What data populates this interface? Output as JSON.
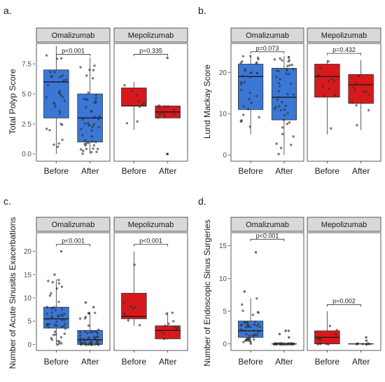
{
  "colors": {
    "Before_Omalizumab": "#3a77d6",
    "After_Omalizumab": "#3a77d6",
    "mepolizumab": "#d7191c",
    "strip": "#d9d9d9",
    "point": "#333333"
  },
  "chart_data": [
    {
      "type": "boxplot",
      "panel_label": "a.",
      "ylabel": "Total Polyp Score",
      "ylim": [
        -0.6,
        9.2
      ],
      "yticks": [
        0.0,
        2.5,
        5.0,
        7.5
      ],
      "ytick_labels": [
        "0.0",
        "2.5",
        "5.0",
        "7.5"
      ],
      "facets": [
        "Omalizumab",
        "Mepolizumab"
      ],
      "categories": [
        "Before",
        "After"
      ],
      "boxes": {
        "Omalizumab": {
          "Before": {
            "min": 0,
            "q1": 3,
            "median": 6,
            "q3": 7,
            "max": 9
          },
          "After": {
            "min": 0,
            "q1": 1,
            "median": 3,
            "q3": 5,
            "max": 8
          }
        },
        "Mepolizumab": {
          "Before": {
            "min": 2,
            "q1": 4,
            "median": 4,
            "q3": 5.5,
            "max": 6
          },
          "After": {
            "min": 3,
            "q1": 3,
            "median": 3.5,
            "q3": 4,
            "max": 4
          }
        }
      },
      "outliers": {
        "Mepolizumab": {
          "After": [
            0,
            0,
            8
          ]
        }
      },
      "n_points": {
        "Omalizumab": {
          "Before": 32,
          "After": 50
        },
        "Mepolizumab": {
          "Before": 9,
          "After": 12
        }
      },
      "p_values": [
        {
          "facet": "Omalizumab",
          "text": "p<0.001",
          "y": 8.3
        },
        {
          "facet": "Mepolizumab",
          "text": "p=0.335",
          "y": 8.3
        }
      ]
    },
    {
      "type": "boxplot",
      "panel_label": "b.",
      "ylabel": "Lund Mackay Score",
      "ylim": [
        -1.5,
        27
      ],
      "yticks": [
        0,
        10,
        20
      ],
      "ytick_labels": [
        "0",
        "10",
        "20"
      ],
      "facets": [
        "Omalizumab",
        "Mepolizumab"
      ],
      "categories": [
        "Before",
        "After"
      ],
      "boxes": {
        "Omalizumab": {
          "Before": {
            "min": 5,
            "q1": 11,
            "median": 19,
            "q3": 22,
            "max": 24
          },
          "After": {
            "min": 0,
            "q1": 8.5,
            "median": 14,
            "q3": 21,
            "max": 24
          }
        },
        "Mepolizumab": {
          "Before": {
            "min": 5,
            "q1": 14,
            "median": 19,
            "q3": 22,
            "max": 23
          },
          "After": {
            "min": 6,
            "q1": 12.5,
            "median": 17,
            "q3": 19.5,
            "max": 23
          }
        }
      },
      "outliers": {},
      "n_points": {
        "Omalizumab": {
          "Before": 32,
          "After": 45
        },
        "Mepolizumab": {
          "Before": 12,
          "After": 11
        }
      },
      "p_values": [
        {
          "facet": "Omalizumab",
          "text": "p=0.073",
          "y": 25.0
        },
        {
          "facet": "Mepolizumab",
          "text": "p=0.432",
          "y": 24.6
        }
      ]
    },
    {
      "type": "boxplot",
      "panel_label": "c.",
      "ylabel": "Number of Acute Sinusitis Exacerbations",
      "ylim": [
        -1.3,
        24
      ],
      "yticks": [
        0,
        5,
        10,
        15,
        20
      ],
      "ytick_labels": [
        "0",
        "5",
        "10",
        "15",
        "20"
      ],
      "facets": [
        "Omalizumab",
        "Mepolizumab"
      ],
      "categories": [
        "Before",
        "After"
      ],
      "boxes": {
        "Omalizumab": {
          "Before": {
            "min": 0,
            "q1": 3.5,
            "median": 5.5,
            "q3": 8,
            "max": 14
          },
          "After": {
            "min": 0,
            "q1": 0,
            "median": 1,
            "q3": 3,
            "max": 7
          }
        },
        "Mepolizumab": {
          "Before": {
            "min": 4,
            "q1": 5.5,
            "median": 6,
            "q3": 11,
            "max": 20
          },
          "After": {
            "min": 1,
            "q1": 1.2,
            "median": 3,
            "q3": 4,
            "max": 7
          }
        }
      },
      "outliers": {
        "Omalizumab": {
          "Before": [
            15,
            20
          ],
          "After": [
            8,
            9
          ]
        }
      },
      "n_points": {
        "Omalizumab": {
          "Before": 50,
          "After": 55
        },
        "Mepolizumab": {
          "Before": 10,
          "After": 11
        }
      },
      "p_values": [
        {
          "facet": "Omalizumab",
          "text": "p<0.001",
          "y": 21.5
        },
        {
          "facet": "Mepolizumab",
          "text": "p<0.001",
          "y": 21.5
        }
      ]
    },
    {
      "type": "boxplot",
      "panel_label": "d.",
      "ylabel": "Number of Endoscopic Sinus Surgeries",
      "ylim": [
        -1,
        17
      ],
      "yticks": [
        0,
        5,
        10,
        15
      ],
      "ytick_labels": [
        "0",
        "5",
        "10",
        "15"
      ],
      "facets": [
        "Omalizumab",
        "Mepolizumab"
      ],
      "categories": [
        "Before",
        "After"
      ],
      "boxes": {
        "Omalizumab": {
          "Before": {
            "min": 0,
            "q1": 1,
            "median": 2,
            "q3": 3.5,
            "max": 7
          },
          "After": {
            "min": 0,
            "q1": 0,
            "median": 0,
            "q3": 0,
            "max": 0
          }
        },
        "Mepolizumab": {
          "Before": {
            "min": 0,
            "q1": 0,
            "median": 1,
            "q3": 2,
            "max": 5
          },
          "After": {
            "min": 0,
            "q1": 0,
            "median": 0,
            "q3": 0,
            "max": 0
          }
        }
      },
      "outliers": {
        "Omalizumab": {
          "Before": [
            8,
            14
          ],
          "After": [
            1,
            1.5,
            2,
            2
          ]
        },
        "Mepolizumab": {
          "After": [
            0.5,
            1
          ]
        }
      },
      "n_points": {
        "Omalizumab": {
          "Before": 50,
          "After": 50
        },
        "Mepolizumab": {
          "Before": 11,
          "After": 10
        }
      },
      "p_values": [
        {
          "facet": "Omalizumab",
          "text": "p<0.001",
          "y": 16.0
        },
        {
          "facet": "Mepolizumab",
          "text": "p=0.002",
          "y": 6.0
        }
      ]
    }
  ]
}
